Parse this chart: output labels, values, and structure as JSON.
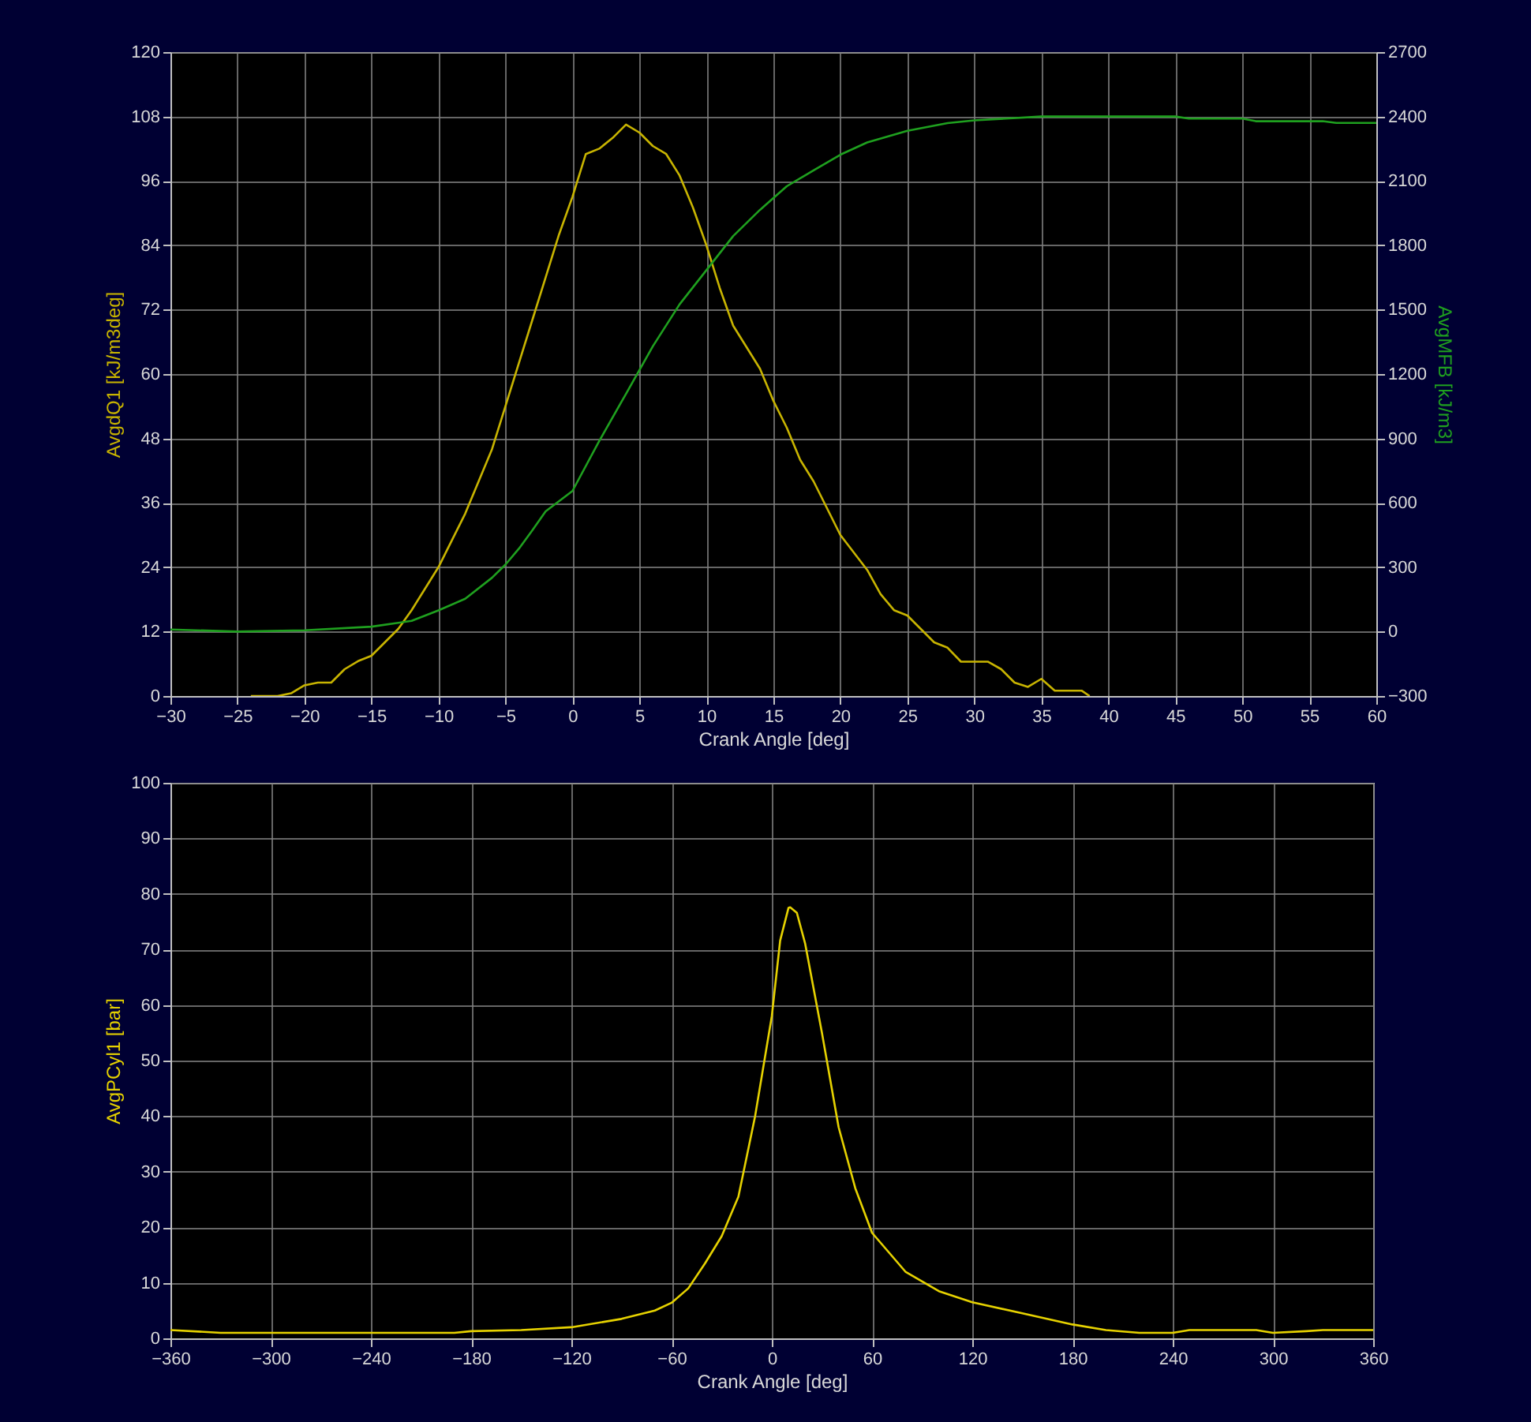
{
  "chart_data": [
    {
      "type": "line",
      "xlabel": "Crank Angle [deg]",
      "ylabel": "AvgdQ1 [kJ/m3deg]",
      "y2label": "AvgMFB [kJ/m3]",
      "xlim": [
        -30,
        60
      ],
      "xticks": [
        -30,
        -25,
        -20,
        -15,
        -10,
        -5,
        0,
        5,
        10,
        15,
        20,
        25,
        30,
        35,
        40,
        45,
        50,
        55,
        60
      ],
      "ylim": [
        0,
        120
      ],
      "yticks": [
        0,
        12,
        24,
        36,
        48,
        60,
        72,
        84,
        96,
        108,
        120
      ],
      "y2lim": [
        -300,
        2700
      ],
      "y2ticks": [
        -300,
        0,
        300,
        600,
        900,
        1200,
        1500,
        1800,
        2100,
        2400,
        2700
      ],
      "grid": true,
      "marker": "none",
      "series": [
        {
          "color": "#c8b400",
          "x": [
            -24,
            -22,
            -21,
            -20,
            -19,
            -18,
            -17,
            -16,
            -15,
            -14,
            -13,
            -12,
            -11,
            -10,
            -9,
            -8,
            -7,
            -6,
            -5,
            -4,
            -3,
            -2,
            -1,
            0,
            1,
            2,
            3,
            4,
            5,
            6,
            7,
            8,
            9,
            10,
            11,
            12,
            13,
            14,
            15,
            16,
            17,
            18,
            19,
            20,
            22,
            23,
            24,
            25,
            27,
            28,
            29,
            31,
            32,
            33,
            34,
            35,
            36,
            38,
            38.6
          ],
          "values": [
            0,
            0,
            0.5,
            2,
            2.5,
            2.5,
            5,
            6.5,
            7.5,
            10,
            12.5,
            16,
            20,
            24,
            29,
            34,
            40,
            46,
            54,
            62,
            70,
            78,
            86,
            93,
            101,
            102,
            104,
            106.5,
            105,
            102.5,
            101,
            97,
            91,
            84,
            76,
            69,
            65,
            61,
            55,
            50,
            44,
            40,
            35,
            30,
            23.5,
            19,
            16,
            15,
            10,
            9,
            6.4,
            6.4,
            5,
            2.5,
            1.7,
            3.2,
            1,
            1,
            0
          ]
        },
        {
          "color": "#1fa01f",
          "axis": "y2",
          "x": [
            -30,
            -25,
            -20,
            -15,
            -12,
            -10,
            -8,
            -6,
            -5,
            -4,
            -3,
            -2,
            0,
            2,
            4,
            6,
            8,
            10,
            12,
            14,
            16,
            18,
            20,
            22,
            25,
            28,
            30,
            35,
            45,
            46,
            50,
            51,
            56,
            57,
            60
          ],
          "values": [
            10,
            0,
            6,
            23,
            50,
            99,
            153,
            251,
            312,
            386,
            471,
            560,
            655,
            888,
            1108,
            1329,
            1525,
            1684,
            1843,
            1965,
            2075,
            2149,
            2222,
            2279,
            2333,
            2369,
            2382,
            2400,
            2400,
            2390,
            2390,
            2378,
            2378,
            2370,
            2370
          ]
        }
      ]
    },
    {
      "type": "line",
      "xlabel": "Crank Angle [deg]",
      "ylabel": "AvgPCyl1 [bar]",
      "xlim": [
        -360,
        360
      ],
      "xticks": [
        -360,
        -300,
        -240,
        -180,
        -120,
        -60,
        0,
        60,
        120,
        180,
        240,
        300,
        360
      ],
      "ylim": [
        0,
        100
      ],
      "yticks": [
        0,
        10,
        20,
        30,
        40,
        50,
        60,
        70,
        80,
        90,
        100
      ],
      "grid": true,
      "marker": "none",
      "series": [
        {
          "color": "#e6d200",
          "x": [
            -360,
            -330,
            -190,
            -180,
            -150,
            -120,
            -90,
            -70,
            -60,
            -50,
            -40,
            -30,
            -20,
            -10,
            0,
            5,
            10,
            11,
            15,
            20,
            30,
            40,
            50,
            60,
            80,
            100,
            120,
            150,
            180,
            200,
            220,
            240,
            250,
            290,
            300,
            320,
            330,
            360
          ],
          "values": [
            1.5,
            1,
            1,
            1.3,
            1.5,
            2,
            3.5,
            5,
            6.4,
            9,
            13.5,
            18.4,
            25.5,
            40,
            58,
            71.6,
            77.5,
            77.6,
            76.6,
            71,
            55,
            38,
            27,
            19,
            12,
            8.5,
            6.5,
            4.5,
            2.5,
            1.5,
            1,
            1,
            1.5,
            1.5,
            1,
            1.3,
            1.5,
            1.5
          ]
        }
      ]
    }
  ]
}
